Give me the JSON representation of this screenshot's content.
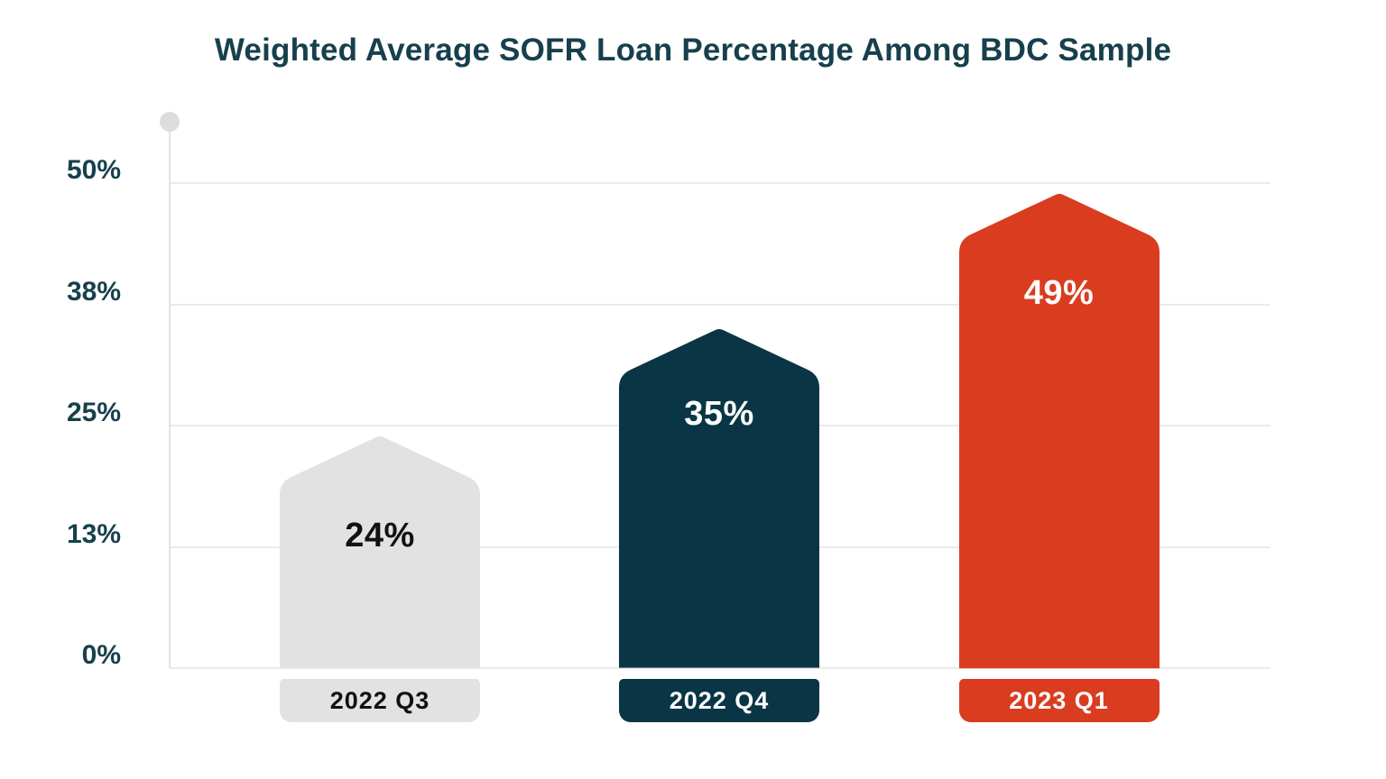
{
  "chart_data": {
    "type": "bar",
    "title": "Weighted Average SOFR Loan Percentage Among BDC Sample",
    "categories": [
      "2022 Q3",
      "2022 Q4",
      "2023 Q1"
    ],
    "values": [
      24,
      35,
      49
    ],
    "value_labels": [
      "24%",
      "35%",
      "49%"
    ],
    "xlabel": "",
    "ylabel": "",
    "ylim": [
      0,
      50
    ],
    "ytick_labels": [
      "50%",
      "38%",
      "25%",
      "13%",
      "0%"
    ],
    "ytick_values": [
      50,
      37.5,
      25,
      12.5,
      0
    ],
    "grid": true,
    "legend": false,
    "bar_style": "pentagon-top",
    "colors": {
      "bars": [
        "#e2e2e2",
        "#0a3544",
        "#da3c20"
      ],
      "bar_text": [
        "#111111",
        "#ffffff",
        "#ffffff"
      ],
      "title_text": "#17404d",
      "axis_text": "#17404d",
      "gridline": "#ebebeb",
      "axis_line": "#e3e3e3",
      "axis_dot": "#dcdcdc",
      "background": "#ffffff"
    }
  }
}
